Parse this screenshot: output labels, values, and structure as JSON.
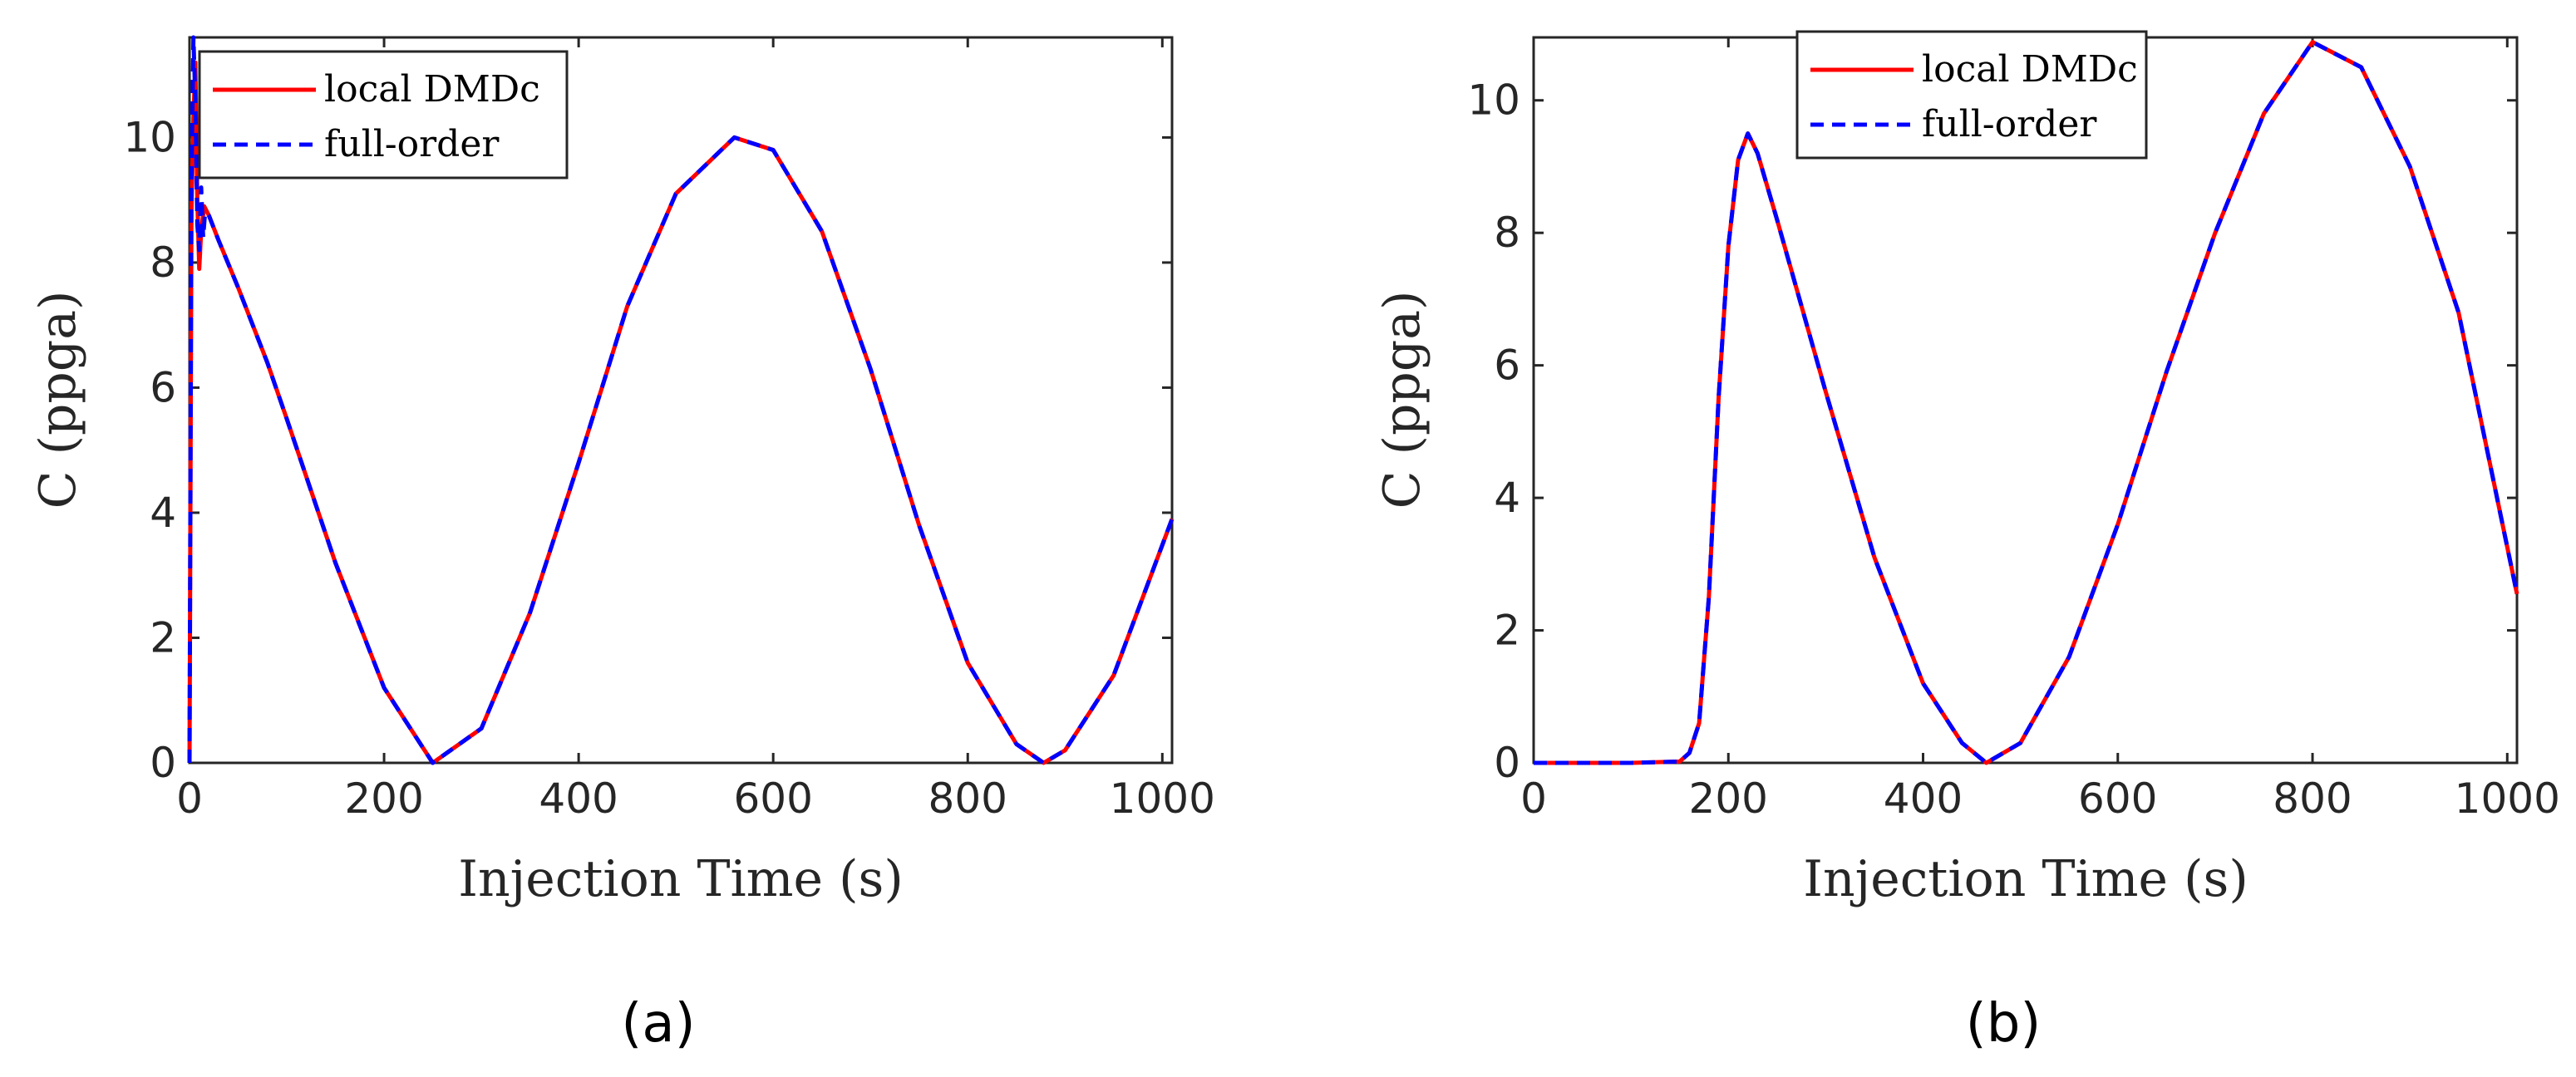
{
  "colors": {
    "local": "#ff0000",
    "full": "#0000ff",
    "axis": "#262626"
  },
  "chart_data": [
    {
      "type": "line",
      "panel": "a",
      "caption": "(a)",
      "xlabel": "Injection Time (s)",
      "ylabel": "C (ppga)",
      "xlim": [
        0,
        1010
      ],
      "ylim": [
        0,
        11.6
      ],
      "xticks": [
        0,
        200,
        400,
        600,
        800,
        1000
      ],
      "yticks": [
        0,
        2,
        4,
        6,
        8,
        10
      ],
      "xtick_labels": [
        "0",
        "200",
        "400",
        "600",
        "800",
        "1000"
      ],
      "ytick_labels": [
        "0",
        "2",
        "4",
        "6",
        "8",
        "10"
      ],
      "legend": {
        "position": "top-left",
        "entries": [
          "local DMDc",
          "full-order"
        ]
      },
      "series": [
        {
          "name": "local DMDc",
          "style": "solid",
          "color": "#ff0000",
          "points": [
            [
              0,
              0
            ],
            [
              2,
              8.8
            ],
            [
              4,
              10.3
            ],
            [
              6,
              11.2
            ],
            [
              8,
              9.0
            ],
            [
              10,
              7.9
            ],
            [
              12,
              8.5
            ],
            [
              15,
              8.9
            ],
            [
              20,
              8.75
            ],
            [
              30,
              8.35
            ],
            [
              50,
              7.6
            ],
            [
              80,
              6.4
            ],
            [
              100,
              5.5
            ],
            [
              150,
              3.2
            ],
            [
              200,
              1.2
            ],
            [
              250,
              0.0
            ],
            [
              300,
              0.55
            ],
            [
              350,
              2.4
            ],
            [
              400,
              4.8
            ],
            [
              450,
              7.3
            ],
            [
              500,
              9.1
            ],
            [
              560,
              10.0
            ],
            [
              600,
              9.8
            ],
            [
              650,
              8.5
            ],
            [
              700,
              6.3
            ],
            [
              750,
              3.8
            ],
            [
              800,
              1.6
            ],
            [
              850,
              0.3
            ],
            [
              878,
              0.0
            ],
            [
              900,
              0.2
            ],
            [
              950,
              1.4
            ],
            [
              1010,
              3.9
            ]
          ]
        },
        {
          "name": "full-order",
          "style": "dashed",
          "color": "#0000ff",
          "points": [
            [
              0,
              0
            ],
            [
              2,
              9.2
            ],
            [
              4,
              11.6
            ],
            [
              6,
              10.6
            ],
            [
              8,
              8.6
            ],
            [
              10,
              8.2
            ],
            [
              12,
              9.2
            ],
            [
              14,
              8.4
            ],
            [
              16,
              8.8
            ],
            [
              20,
              8.75
            ],
            [
              30,
              8.35
            ],
            [
              50,
              7.6
            ],
            [
              80,
              6.4
            ],
            [
              100,
              5.5
            ],
            [
              150,
              3.2
            ],
            [
              200,
              1.2
            ],
            [
              250,
              0.0
            ],
            [
              300,
              0.55
            ],
            [
              350,
              2.4
            ],
            [
              400,
              4.8
            ],
            [
              450,
              7.3
            ],
            [
              500,
              9.1
            ],
            [
              560,
              10.0
            ],
            [
              600,
              9.8
            ],
            [
              650,
              8.5
            ],
            [
              700,
              6.3
            ],
            [
              750,
              3.8
            ],
            [
              800,
              1.6
            ],
            [
              850,
              0.3
            ],
            [
              878,
              0.0
            ],
            [
              900,
              0.2
            ],
            [
              950,
              1.4
            ],
            [
              1010,
              3.9
            ]
          ]
        }
      ]
    },
    {
      "type": "line",
      "panel": "b",
      "caption": "(b)",
      "xlabel": "Injection Time (s)",
      "ylabel": "C (ppga)",
      "xlim": [
        0,
        1010
      ],
      "ylim": [
        0,
        10.95
      ],
      "xticks": [
        0,
        200,
        400,
        600,
        800,
        1000
      ],
      "yticks": [
        0,
        2,
        4,
        6,
        8,
        10
      ],
      "xtick_labels": [
        "0",
        "200",
        "400",
        "600",
        "800",
        "1000"
      ],
      "ytick_labels": [
        "0",
        "2",
        "4",
        "6",
        "8",
        "10"
      ],
      "legend": {
        "position": "top-center",
        "entries": [
          "local DMDc",
          "full-order"
        ]
      },
      "series": [
        {
          "name": "local DMDc",
          "style": "solid",
          "color": "#ff0000",
          "points": [
            [
              0,
              0
            ],
            [
              100,
              0.0
            ],
            [
              150,
              0.02
            ],
            [
              160,
              0.15
            ],
            [
              170,
              0.6
            ],
            [
              180,
              2.5
            ],
            [
              190,
              5.5
            ],
            [
              200,
              7.8
            ],
            [
              210,
              9.1
            ],
            [
              220,
              9.5
            ],
            [
              230,
              9.2
            ],
            [
              250,
              8.2
            ],
            [
              300,
              5.6
            ],
            [
              350,
              3.1
            ],
            [
              400,
              1.2
            ],
            [
              440,
              0.3
            ],
            [
              465,
              0.0
            ],
            [
              500,
              0.3
            ],
            [
              550,
              1.6
            ],
            [
              600,
              3.6
            ],
            [
              650,
              5.9
            ],
            [
              700,
              8.0
            ],
            [
              750,
              9.8
            ],
            [
              800,
              10.88
            ],
            [
              850,
              10.5
            ],
            [
              900,
              9.0
            ],
            [
              950,
              6.8
            ],
            [
              1010,
              2.55
            ]
          ]
        },
        {
          "name": "full-order",
          "style": "dashed",
          "color": "#0000ff",
          "points": [
            [
              0,
              0
            ],
            [
              100,
              0.0
            ],
            [
              150,
              0.02
            ],
            [
              160,
              0.15
            ],
            [
              170,
              0.6
            ],
            [
              180,
              2.5
            ],
            [
              190,
              5.5
            ],
            [
              200,
              7.8
            ],
            [
              210,
              9.1
            ],
            [
              220,
              9.5
            ],
            [
              230,
              9.2
            ],
            [
              250,
              8.2
            ],
            [
              300,
              5.6
            ],
            [
              350,
              3.1
            ],
            [
              400,
              1.2
            ],
            [
              440,
              0.3
            ],
            [
              465,
              0.0
            ],
            [
              500,
              0.3
            ],
            [
              550,
              1.6
            ],
            [
              600,
              3.6
            ],
            [
              650,
              5.9
            ],
            [
              700,
              8.0
            ],
            [
              750,
              9.8
            ],
            [
              800,
              10.88
            ],
            [
              850,
              10.5
            ],
            [
              900,
              9.0
            ],
            [
              950,
              6.8
            ],
            [
              1010,
              2.55
            ]
          ]
        }
      ]
    }
  ]
}
